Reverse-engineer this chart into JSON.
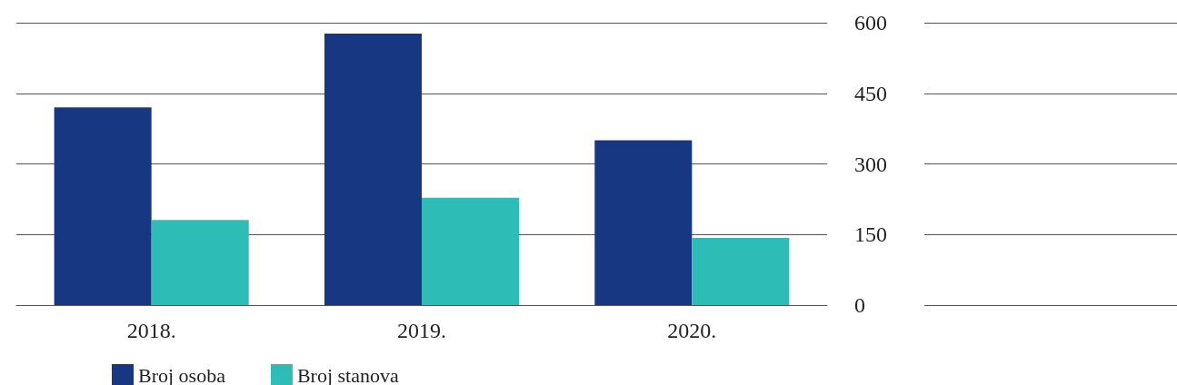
{
  "chart_data": {
    "type": "bar",
    "categories": [
      "2018.",
      "2019.",
      "2020."
    ],
    "series": [
      {
        "name": "Broj osoba",
        "color": "#173782",
        "values": [
          420,
          577,
          350
        ]
      },
      {
        "name": "Broj stanova",
        "color": "#2ebcb7",
        "values": [
          181,
          228,
          143
        ]
      }
    ],
    "ylim": [
      0,
      600
    ],
    "yticks": [
      0,
      150,
      300,
      450,
      600
    ],
    "grid": "y",
    "legend": "bottom left"
  }
}
